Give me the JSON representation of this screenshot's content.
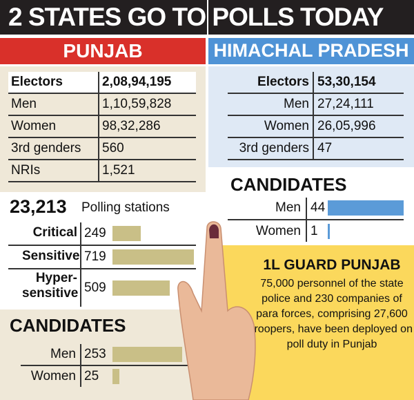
{
  "title": "2 STATES GO TO POLLS TODAY",
  "punjab": {
    "name": "PUNJAB",
    "electors": [
      {
        "label": "Electors",
        "value": "2,08,94,195"
      },
      {
        "label": "Men",
        "value": "1,10,59,828"
      },
      {
        "label": "Women",
        "value": "98,32,286"
      },
      {
        "label": "3rd genders",
        "value": "560"
      },
      {
        "label": "NRIs",
        "value": "1,521"
      }
    ],
    "polling_stations": {
      "count": "23,213",
      "label": "Polling stations",
      "categories": [
        "Critical",
        "Sensitive",
        "Hyper-sensitive"
      ],
      "values": [
        249,
        719,
        509
      ]
    },
    "candidates": {
      "title": "CANDIDATES",
      "categories": [
        "Men",
        "Women"
      ],
      "values": [
        253,
        25
      ]
    }
  },
  "himachal": {
    "name": "HIMACHAL PRADESH",
    "electors": [
      {
        "label": "Electors",
        "value": "53,30,154"
      },
      {
        "label": "Men",
        "value": "27,24,111"
      },
      {
        "label": "Women",
        "value": "26,05,996"
      },
      {
        "label": "3rd genders",
        "value": "47"
      }
    ],
    "candidates": {
      "title": "CANDIDATES",
      "categories": [
        "Men",
        "Women"
      ],
      "values": [
        44,
        1
      ]
    }
  },
  "guard": {
    "title": "1L GUARD PUNJAB",
    "text": "75,000 personnel of the state police and 230 companies of para forces, comprising 27,600 troopers, have been deployed on poll duty in Punjab"
  }
}
